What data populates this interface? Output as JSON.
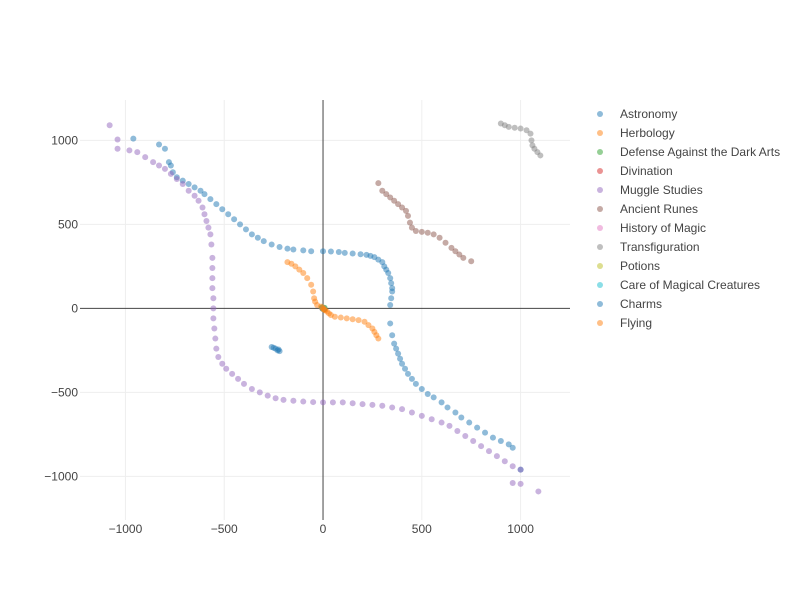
{
  "chart_data": {
    "type": "scatter",
    "title": "",
    "xlabel": "",
    "ylabel": "",
    "xlim": [
      -1230,
      1250
    ],
    "ylim": [
      -1260,
      1240
    ],
    "x_ticks": [
      -1000,
      -500,
      0,
      500,
      1000
    ],
    "x_tick_labels": [
      "−1000",
      "−500",
      "0",
      "500",
      "1000"
    ],
    "y_ticks": [
      1000,
      500,
      0,
      -500,
      -1000
    ],
    "y_tick_labels": [
      "1000",
      "500",
      "0",
      "−500",
      "−1000"
    ],
    "grid": true,
    "zero_lines": true,
    "legend": "right",
    "series": [
      {
        "name": "Astronomy",
        "color": "#1f77b4",
        "points": [
          [
            -960,
            1010
          ],
          [
            -830,
            975
          ],
          [
            -800,
            950
          ],
          [
            -780,
            870
          ],
          [
            -770,
            850
          ],
          [
            -760,
            810
          ],
          [
            -740,
            780
          ],
          [
            -710,
            760
          ],
          [
            -680,
            740
          ],
          [
            -650,
            720
          ],
          [
            -620,
            700
          ],
          [
            -600,
            680
          ],
          [
            -570,
            650
          ],
          [
            -540,
            620
          ],
          [
            -510,
            590
          ],
          [
            -480,
            560
          ],
          [
            -450,
            530
          ],
          [
            -420,
            500
          ],
          [
            -390,
            470
          ],
          [
            -360,
            440
          ],
          [
            -330,
            420
          ],
          [
            -300,
            400
          ],
          [
            -260,
            380
          ],
          [
            -220,
            365
          ],
          [
            -180,
            355
          ],
          [
            -150,
            350
          ],
          [
            -100,
            345
          ],
          [
            -60,
            340
          ],
          [
            0,
            340
          ],
          [
            40,
            338
          ],
          [
            80,
            335
          ],
          [
            110,
            330
          ],
          [
            150,
            326
          ],
          [
            190,
            322
          ],
          [
            220,
            318
          ],
          [
            240,
            312
          ],
          [
            260,
            305
          ],
          [
            280,
            290
          ],
          [
            300,
            275
          ],
          [
            310,
            250
          ],
          [
            320,
            230
          ],
          [
            330,
            210
          ],
          [
            340,
            180
          ],
          [
            345,
            150
          ],
          [
            350,
            120
          ],
          [
            350,
            100
          ],
          [
            345,
            60
          ],
          [
            340,
            20
          ],
          [
            340,
            -90
          ],
          [
            350,
            -160
          ],
          [
            360,
            -210
          ],
          [
            370,
            -240
          ],
          [
            380,
            -270
          ],
          [
            390,
            -300
          ],
          [
            400,
            -330
          ],
          [
            415,
            -360
          ],
          [
            430,
            -390
          ],
          [
            450,
            -420
          ],
          [
            470,
            -450
          ],
          [
            500,
            -480
          ],
          [
            530,
            -510
          ],
          [
            560,
            -530
          ],
          [
            600,
            -560
          ],
          [
            630,
            -590
          ],
          [
            670,
            -620
          ],
          [
            700,
            -650
          ],
          [
            740,
            -680
          ],
          [
            780,
            -710
          ],
          [
            820,
            -740
          ],
          [
            860,
            -770
          ],
          [
            900,
            -790
          ],
          [
            940,
            -810
          ],
          [
            960,
            -830
          ],
          [
            1000,
            -960
          ]
        ]
      },
      {
        "name": "Herbology",
        "color": "#ff7f0e",
        "points": [
          [
            -180,
            275
          ],
          [
            -160,
            265
          ],
          [
            -140,
            250
          ],
          [
            -120,
            230
          ],
          [
            -100,
            210
          ],
          [
            -80,
            180
          ],
          [
            -60,
            140
          ],
          [
            -50,
            100
          ],
          [
            -45,
            60
          ],
          [
            -40,
            40
          ],
          [
            -30,
            20
          ],
          [
            -10,
            10
          ],
          [
            0,
            0
          ],
          [
            10,
            -10
          ],
          [
            20,
            -20
          ],
          [
            30,
            -30
          ],
          [
            40,
            -40
          ],
          [
            60,
            -50
          ],
          [
            90,
            -55
          ],
          [
            120,
            -60
          ],
          [
            150,
            -65
          ],
          [
            180,
            -70
          ],
          [
            210,
            -80
          ],
          [
            230,
            -100
          ],
          [
            250,
            -120
          ],
          [
            260,
            -140
          ],
          [
            270,
            -160
          ],
          [
            280,
            -180
          ]
        ]
      },
      {
        "name": "Defense Against the Dark Arts",
        "color": "#2ca02c",
        "points": [
          [
            -5,
            5
          ],
          [
            0,
            0
          ],
          [
            5,
            -5
          ],
          [
            8,
            3
          ]
        ]
      },
      {
        "name": "Divination",
        "color": "#d62728",
        "points": [
          [
            -3,
            -2
          ],
          [
            3,
            2
          ],
          [
            6,
            -4
          ]
        ]
      },
      {
        "name": "Muggle Studies",
        "color": "#9467bd",
        "points": [
          [
            -1080,
            1090
          ],
          [
            -1040,
            1005
          ],
          [
            -1040,
            950
          ],
          [
            -980,
            940
          ],
          [
            -940,
            930
          ],
          [
            -900,
            900
          ],
          [
            -860,
            870
          ],
          [
            -830,
            850
          ],
          [
            -800,
            830
          ],
          [
            -770,
            800
          ],
          [
            -740,
            770
          ],
          [
            -710,
            740
          ],
          [
            -680,
            700
          ],
          [
            -650,
            670
          ],
          [
            -630,
            640
          ],
          [
            -610,
            600
          ],
          [
            -600,
            560
          ],
          [
            -590,
            520
          ],
          [
            -580,
            480
          ],
          [
            -570,
            440
          ],
          [
            -565,
            380
          ],
          [
            -560,
            300
          ],
          [
            -560,
            240
          ],
          [
            -560,
            180
          ],
          [
            -560,
            120
          ],
          [
            -555,
            60
          ],
          [
            -555,
            0
          ],
          [
            -555,
            -60
          ],
          [
            -550,
            -120
          ],
          [
            -545,
            -180
          ],
          [
            -540,
            -240
          ],
          [
            -530,
            -290
          ],
          [
            -510,
            -330
          ],
          [
            -490,
            -360
          ],
          [
            -460,
            -390
          ],
          [
            -430,
            -420
          ],
          [
            -400,
            -450
          ],
          [
            -360,
            -480
          ],
          [
            -320,
            -500
          ],
          [
            -280,
            -520
          ],
          [
            -240,
            -535
          ],
          [
            -200,
            -545
          ],
          [
            -150,
            -550
          ],
          [
            -100,
            -555
          ],
          [
            -50,
            -558
          ],
          [
            0,
            -560
          ],
          [
            50,
            -560
          ],
          [
            100,
            -560
          ],
          [
            150,
            -565
          ],
          [
            200,
            -570
          ],
          [
            250,
            -575
          ],
          [
            300,
            -580
          ],
          [
            350,
            -590
          ],
          [
            400,
            -600
          ],
          [
            450,
            -620
          ],
          [
            500,
            -640
          ],
          [
            550,
            -660
          ],
          [
            600,
            -680
          ],
          [
            640,
            -700
          ],
          [
            680,
            -730
          ],
          [
            720,
            -760
          ],
          [
            760,
            -790
          ],
          [
            800,
            -820
          ],
          [
            840,
            -850
          ],
          [
            880,
            -880
          ],
          [
            920,
            -910
          ],
          [
            960,
            -940
          ],
          [
            1000,
            -960
          ],
          [
            960,
            -1040
          ],
          [
            1000,
            -1045
          ],
          [
            1090,
            -1090
          ]
        ]
      },
      {
        "name": "Ancient Runes",
        "color": "#8c564b",
        "points": [
          [
            280,
            745
          ],
          [
            300,
            700
          ],
          [
            320,
            680
          ],
          [
            340,
            660
          ],
          [
            360,
            640
          ],
          [
            380,
            620
          ],
          [
            400,
            600
          ],
          [
            420,
            580
          ],
          [
            430,
            550
          ],
          [
            440,
            510
          ],
          [
            450,
            480
          ],
          [
            470,
            460
          ],
          [
            500,
            455
          ],
          [
            530,
            450
          ],
          [
            560,
            440
          ],
          [
            590,
            420
          ],
          [
            620,
            390
          ],
          [
            650,
            360
          ],
          [
            670,
            340
          ],
          [
            690,
            320
          ],
          [
            710,
            300
          ],
          [
            750,
            280
          ]
        ]
      },
      {
        "name": "History of Magic",
        "color": "#e377c2",
        "points": [
          [
            2,
            2
          ],
          [
            -2,
            -3
          ]
        ]
      },
      {
        "name": "Transfiguration",
        "color": "#7f7f7f",
        "points": [
          [
            900,
            1100
          ],
          [
            920,
            1090
          ],
          [
            940,
            1080
          ],
          [
            970,
            1075
          ],
          [
            1000,
            1070
          ],
          [
            1030,
            1060
          ],
          [
            1050,
            1040
          ],
          [
            1055,
            1000
          ],
          [
            1060,
            970
          ],
          [
            1070,
            950
          ],
          [
            1085,
            930
          ],
          [
            1100,
            910
          ]
        ]
      },
      {
        "name": "Potions",
        "color": "#bcbd22",
        "points": [
          [
            0,
            -5
          ],
          [
            4,
            4
          ]
        ]
      },
      {
        "name": "Care of Magical Creatures",
        "color": "#17becf",
        "points": [
          [
            -4,
            0
          ],
          [
            6,
            1
          ]
        ]
      },
      {
        "name": "Charms",
        "color": "#1f77b4",
        "points": [
          [
            -260,
            -230
          ],
          [
            -240,
            -240
          ],
          [
            -230,
            -250
          ],
          [
            -220,
            -255
          ],
          [
            -250,
            -235
          ],
          [
            -225,
            -245
          ]
        ]
      },
      {
        "name": "Flying",
        "color": "#ff7f0e",
        "points": [
          [
            0,
            0
          ],
          [
            5,
            -5
          ],
          [
            -5,
            5
          ],
          [
            10,
            -10
          ]
        ]
      }
    ]
  }
}
